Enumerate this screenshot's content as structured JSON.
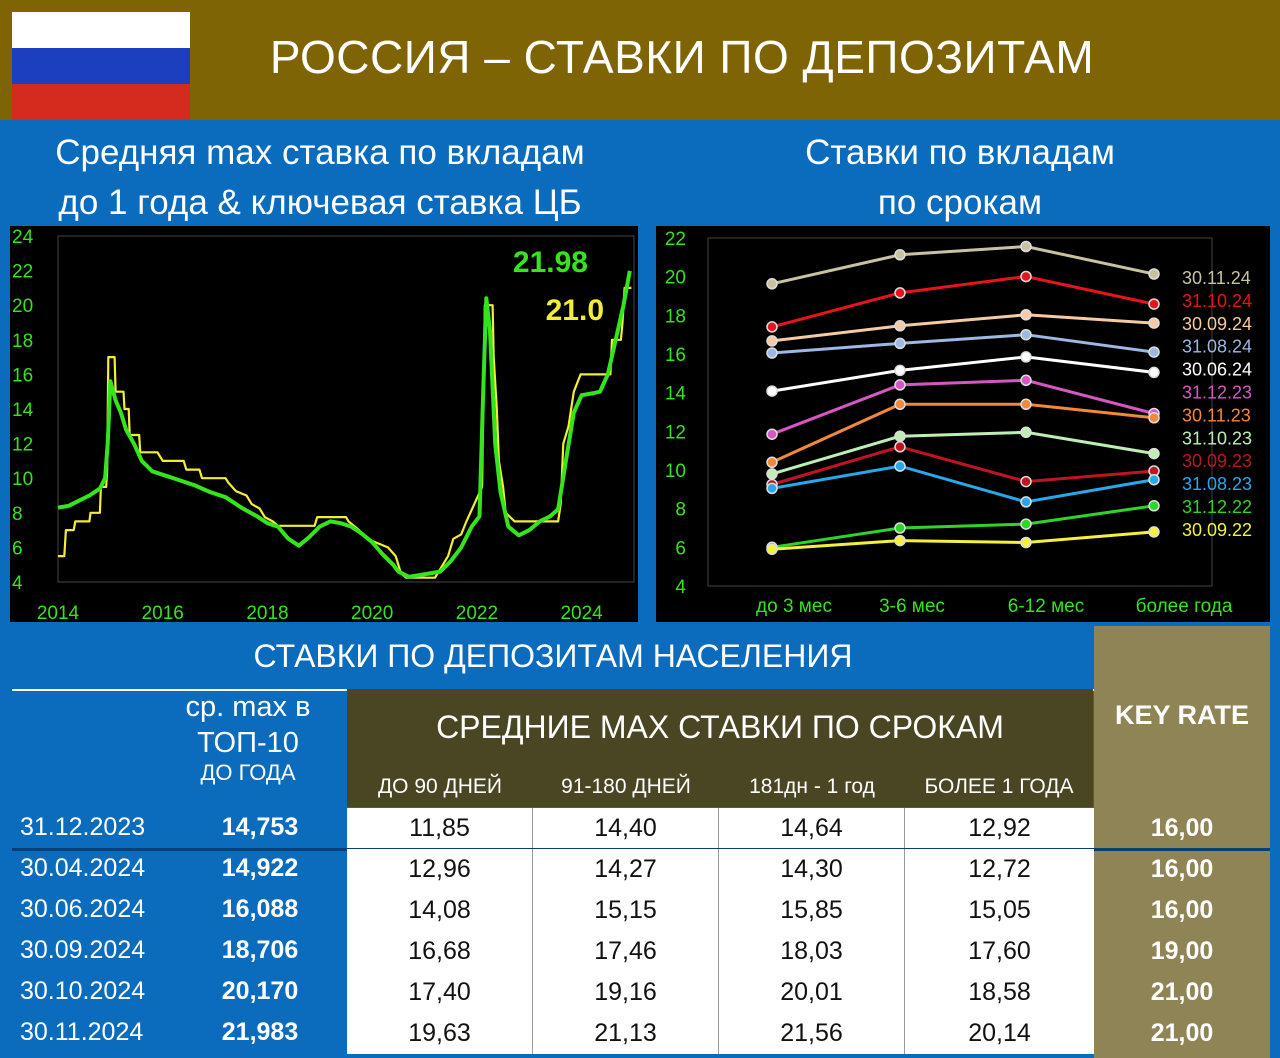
{
  "header": {
    "title": "РОССИЯ – СТАВКИ ПО ДЕПОЗИТАМ",
    "flag_colors": [
      "#ffffff",
      "#1c3fbf",
      "#d52b1e"
    ]
  },
  "left_panel": {
    "title_line1": "Средняя max ставка по вкладам",
    "title_line2": "до 1 года & ключевая ставка ЦБ"
  },
  "right_panel": {
    "title_line1": "Ставки по вкладам",
    "title_line2": "по срокам"
  },
  "chart_data": [
    {
      "type": "line",
      "title": "",
      "xlabel": "",
      "ylabel": "",
      "xlim": [
        2014,
        2025
      ],
      "ylim": [
        4,
        24
      ],
      "y_ticks": [
        4,
        6,
        8,
        10,
        12,
        14,
        16,
        18,
        20,
        22,
        24
      ],
      "x_ticks": [
        2014,
        2016,
        2018,
        2020,
        2022,
        2024
      ],
      "grid": false,
      "annotations": [
        {
          "text": "21.98",
          "color": "#35e51b"
        },
        {
          "text": "21.0",
          "color": "#f2ee33"
        }
      ],
      "series": [
        {
          "color": "#35e51b",
          "points": [
            [
              2014.0,
              8.3
            ],
            [
              2014.2,
              8.4
            ],
            [
              2014.4,
              8.7
            ],
            [
              2014.6,
              9.0
            ],
            [
              2014.8,
              9.4
            ],
            [
              2014.9,
              10.0
            ],
            [
              2014.95,
              12.0
            ],
            [
              2015.0,
              15.6
            ],
            [
              2015.1,
              14.5
            ],
            [
              2015.2,
              13.8
            ],
            [
              2015.3,
              12.8
            ],
            [
              2015.45,
              12.0
            ],
            [
              2015.6,
              11.0
            ],
            [
              2015.8,
              10.4
            ],
            [
              2016.0,
              10.2
            ],
            [
              2016.3,
              9.9
            ],
            [
              2016.6,
              9.6
            ],
            [
              2016.9,
              9.2
            ],
            [
              2017.2,
              8.9
            ],
            [
              2017.5,
              8.3
            ],
            [
              2017.8,
              7.8
            ],
            [
              2018.0,
              7.4
            ],
            [
              2018.2,
              7.2
            ],
            [
              2018.4,
              6.5
            ],
            [
              2018.6,
              6.1
            ],
            [
              2018.8,
              6.6
            ],
            [
              2019.0,
              7.2
            ],
            [
              2019.2,
              7.5
            ],
            [
              2019.4,
              7.4
            ],
            [
              2019.6,
              7.2
            ],
            [
              2019.8,
              6.8
            ],
            [
              2020.0,
              6.3
            ],
            [
              2020.2,
              5.6
            ],
            [
              2020.4,
              5.0
            ],
            [
              2020.5,
              4.6
            ],
            [
              2020.7,
              4.3
            ],
            [
              2020.9,
              4.4
            ],
            [
              2021.1,
              4.5
            ],
            [
              2021.3,
              4.6
            ],
            [
              2021.5,
              5.2
            ],
            [
              2021.7,
              6.0
            ],
            [
              2021.9,
              7.2
            ],
            [
              2022.05,
              7.8
            ],
            [
              2022.12,
              15.0
            ],
            [
              2022.18,
              20.4
            ],
            [
              2022.25,
              18.5
            ],
            [
              2022.35,
              12.0
            ],
            [
              2022.45,
              9.2
            ],
            [
              2022.6,
              7.2
            ],
            [
              2022.8,
              6.7
            ],
            [
              2023.0,
              7.0
            ],
            [
              2023.2,
              7.5
            ],
            [
              2023.4,
              7.8
            ],
            [
              2023.55,
              8.2
            ],
            [
              2023.7,
              11.0
            ],
            [
              2023.85,
              13.8
            ],
            [
              2024.0,
              14.8
            ],
            [
              2024.2,
              14.9
            ],
            [
              2024.35,
              15.0
            ],
            [
              2024.5,
              16.0
            ],
            [
              2024.65,
              18.0
            ],
            [
              2024.8,
              20.0
            ],
            [
              2024.92,
              21.98
            ]
          ]
        },
        {
          "color": "#f2ee33",
          "points": [
            [
              2014.0,
              5.5
            ],
            [
              2014.12,
              5.5
            ],
            [
              2014.15,
              7.0
            ],
            [
              2014.3,
              7.0
            ],
            [
              2014.33,
              7.5
            ],
            [
              2014.6,
              7.5
            ],
            [
              2014.62,
              8.0
            ],
            [
              2014.8,
              8.0
            ],
            [
              2014.82,
              9.5
            ],
            [
              2014.92,
              9.5
            ],
            [
              2014.94,
              10.5
            ],
            [
              2014.96,
              17.0
            ],
            [
              2015.08,
              17.0
            ],
            [
              2015.1,
              15.0
            ],
            [
              2015.25,
              15.0
            ],
            [
              2015.27,
              14.0
            ],
            [
              2015.35,
              14.0
            ],
            [
              2015.37,
              12.5
            ],
            [
              2015.55,
              12.5
            ],
            [
              2015.57,
              11.5
            ],
            [
              2015.9,
              11.5
            ],
            [
              2016.0,
              11.0
            ],
            [
              2016.4,
              11.0
            ],
            [
              2016.45,
              10.5
            ],
            [
              2016.7,
              10.5
            ],
            [
              2016.75,
              10.0
            ],
            [
              2017.2,
              10.0
            ],
            [
              2017.25,
              9.75
            ],
            [
              2017.4,
              9.25
            ],
            [
              2017.6,
              9.0
            ],
            [
              2017.7,
              8.5
            ],
            [
              2017.85,
              8.25
            ],
            [
              2017.95,
              7.75
            ],
            [
              2018.1,
              7.5
            ],
            [
              2018.2,
              7.25
            ],
            [
              2018.9,
              7.25
            ],
            [
              2018.95,
              7.75
            ],
            [
              2019.5,
              7.75
            ],
            [
              2019.55,
              7.5
            ],
            [
              2019.65,
              7.25
            ],
            [
              2019.75,
              7.0
            ],
            [
              2019.9,
              6.5
            ],
            [
              2020.1,
              6.25
            ],
            [
              2020.3,
              6.0
            ],
            [
              2020.45,
              5.5
            ],
            [
              2020.55,
              4.5
            ],
            [
              2020.65,
              4.25
            ],
            [
              2021.2,
              4.25
            ],
            [
              2021.25,
              4.5
            ],
            [
              2021.35,
              5.0
            ],
            [
              2021.45,
              5.5
            ],
            [
              2021.55,
              6.5
            ],
            [
              2021.7,
              6.75
            ],
            [
              2021.8,
              7.5
            ],
            [
              2021.95,
              8.5
            ],
            [
              2022.1,
              9.5
            ],
            [
              2022.15,
              20.0
            ],
            [
              2022.3,
              20.0
            ],
            [
              2022.32,
              17.0
            ],
            [
              2022.38,
              14.0
            ],
            [
              2022.42,
              11.0
            ],
            [
              2022.5,
              9.5
            ],
            [
              2022.55,
              8.0
            ],
            [
              2022.72,
              7.5
            ],
            [
              2023.55,
              7.5
            ],
            [
              2023.6,
              8.5
            ],
            [
              2023.65,
              12.0
            ],
            [
              2023.75,
              13.0
            ],
            [
              2023.85,
              15.0
            ],
            [
              2023.98,
              16.0
            ],
            [
              2024.55,
              16.0
            ],
            [
              2024.58,
              18.0
            ],
            [
              2024.75,
              18.0
            ],
            [
              2024.78,
              19.0
            ],
            [
              2024.82,
              21.0
            ],
            [
              2024.95,
              21.0
            ]
          ]
        }
      ]
    },
    {
      "type": "line",
      "title": "",
      "xlabel": "",
      "ylabel": "",
      "categories": [
        "до 3 мес",
        "3-6 мес",
        "6-12 мес",
        "более года"
      ],
      "ylim": [
        4,
        22
      ],
      "y_ticks": [
        4,
        6,
        8,
        10,
        12,
        14,
        16,
        18,
        20,
        22
      ],
      "grid": false,
      "legend": "right, inline labels at line ends",
      "series": [
        {
          "name": "30.11.24",
          "color": "#c9c2a2",
          "values": [
            19.63,
            21.13,
            21.56,
            20.14
          ]
        },
        {
          "name": "31.10.24",
          "color": "#e8131b",
          "values": [
            17.4,
            19.16,
            20.01,
            18.58
          ]
        },
        {
          "name": "30.09.24",
          "color": "#f5cba4",
          "values": [
            16.68,
            17.46,
            18.03,
            17.6
          ]
        },
        {
          "name": "31.08.24",
          "color": "#9db8e3",
          "values": [
            16.05,
            16.55,
            17.0,
            16.1
          ]
        },
        {
          "name": "30.06.24",
          "color": "#ffffff",
          "values": [
            14.08,
            15.15,
            15.85,
            15.05
          ]
        },
        {
          "name": "31.12.23",
          "color": "#d657c4",
          "values": [
            11.85,
            14.4,
            14.64,
            12.92
          ]
        },
        {
          "name": "30.11.23",
          "color": "#f2883a",
          "values": [
            10.4,
            13.4,
            13.4,
            12.7
          ]
        },
        {
          "name": "31.10.23",
          "color": "#bfeeb4",
          "values": [
            9.8,
            11.75,
            11.95,
            10.85
          ]
        },
        {
          "name": "30.09.23",
          "color": "#c01420",
          "values": [
            9.25,
            11.2,
            9.4,
            9.95
          ]
        },
        {
          "name": "31.08.23",
          "color": "#28a8ea",
          "values": [
            9.05,
            10.2,
            8.35,
            9.5
          ]
        },
        {
          "name": "31.12.22",
          "color": "#2fd42a",
          "values": [
            6.0,
            7.0,
            7.2,
            8.15
          ]
        },
        {
          "name": "30.09.22",
          "color": "#f5f03a",
          "values": [
            5.9,
            6.35,
            6.25,
            6.8
          ]
        }
      ]
    },
    {
      "type": "table",
      "title": "СТАВКИ ПО ДЕПОЗИТАМ НАСЕЛЕНИЯ",
      "group_header": "СРЕДНИЕ МАХ СТАВКИ ПО СРОКАМ",
      "top10_header": [
        "ср. max в",
        "ТОП-10",
        "ДО ГОДА"
      ],
      "term_headers": [
        "ДО 90 ДНЕЙ",
        "91-180 ДНЕЙ",
        "181дн - 1 год",
        "БОЛЕЕ 1 ГОДА"
      ],
      "key_header": "KEY RATE",
      "rows": [
        {
          "date": "31.12.2023",
          "top10": "14,753",
          "terms": [
            "11,85",
            "14,40",
            "14,64",
            "12,92"
          ],
          "key": "16,00"
        },
        {
          "date": "30.04.2024",
          "top10": "14,922",
          "terms": [
            "12,96",
            "14,27",
            "14,30",
            "12,72"
          ],
          "key": "16,00"
        },
        {
          "date": "30.06.2024",
          "top10": "16,088",
          "terms": [
            "14,08",
            "15,15",
            "15,85",
            "15,05"
          ],
          "key": "16,00"
        },
        {
          "date": "30.09.2024",
          "top10": "18,706",
          "terms": [
            "16,68",
            "17,46",
            "18,03",
            "17,60"
          ],
          "key": "19,00"
        },
        {
          "date": "30.10.2024",
          "top10": "20,170",
          "terms": [
            "17,40",
            "19,16",
            "20,01",
            "18,58"
          ],
          "key": "21,00"
        },
        {
          "date": "30.11.2024",
          "top10": "21,983",
          "terms": [
            "19,63",
            "21,13",
            "21,56",
            "20,14"
          ],
          "key": "21,00"
        }
      ]
    }
  ]
}
